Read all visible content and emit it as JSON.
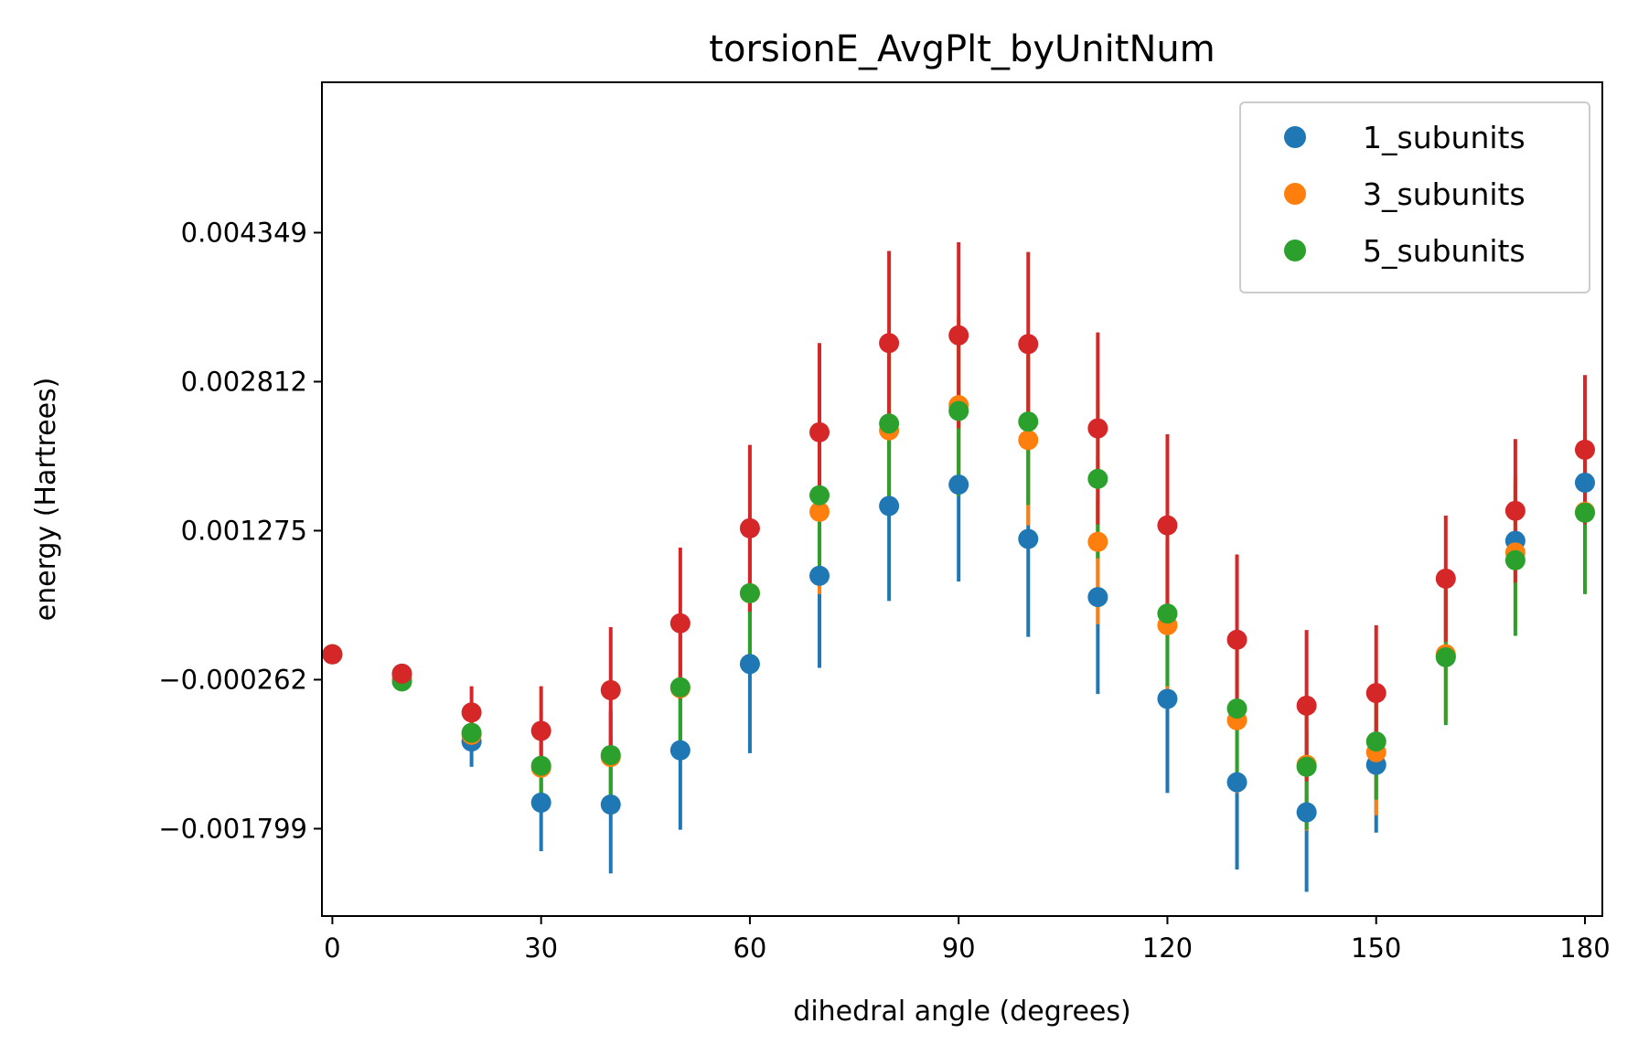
{
  "chart_data": {
    "type": "scatter",
    "title": "torsionE_AvgPlt_byUnitNum",
    "xlabel": "dihedral angle (degrees)",
    "ylabel": "energy (Hartrees)",
    "xlim": [
      -1.5,
      182.5
    ],
    "ylim": [
      -0.0027,
      0.0059
    ],
    "xticks": [
      0,
      30,
      60,
      90,
      120,
      150,
      180
    ],
    "xtick_labels": [
      "0",
      "30",
      "60",
      "90",
      "120",
      "150",
      "180"
    ],
    "yticks": [
      -0.001799,
      -0.000262,
      0.001275,
      0.002812,
      0.004349
    ],
    "ytick_labels": [
      "−0.001799",
      "−0.000262",
      "0.001275",
      "0.002812",
      "0.004349"
    ],
    "legend_position": "top-right",
    "grid": false,
    "x": [
      0,
      10,
      20,
      30,
      40,
      50,
      60,
      70,
      80,
      90,
      100,
      110,
      120,
      130,
      140,
      150,
      160,
      170,
      180
    ],
    "series": [
      {
        "name": "1_subunits",
        "color": "#1f77b4",
        "in_legend": true,
        "values": [
          0,
          -0.0002,
          -0.0009,
          -0.00153,
          -0.00155,
          -0.00099,
          -0.0001,
          0.00081,
          0.00153,
          0.00175,
          0.00119,
          0.00059,
          -0.00046,
          -0.00132,
          -0.00163,
          -0.00114,
          -2e-05,
          0.00117,
          0.00177
        ],
        "errors": [
          0,
          0,
          0.00026,
          0.0005,
          0.00071,
          0.00082,
          0.00092,
          0.00095,
          0.00098,
          0.001,
          0.00101,
          0.001,
          0.00097,
          0.0009,
          0.00082,
          0.0007,
          0,
          0,
          0
        ]
      },
      {
        "name": "3_subunits",
        "color": "#ff7f0e",
        "in_legend": true,
        "values": [
          0,
          -0.00025,
          -0.00083,
          -0.00117,
          -0.00106,
          -0.00035,
          0.00063,
          0.00147,
          0.00231,
          0.00257,
          0.00221,
          0.00116,
          0.0003,
          -0.00068,
          -0.00114,
          -0.00101,
          0,
          0.00105,
          0.00147
        ],
        "errors": [
          0,
          0,
          0.00015,
          0.00035,
          0.0005,
          0.00065,
          0.0008,
          0.00085,
          0.00088,
          0.0009,
          0.00088,
          0.00085,
          0.0008,
          0.00075,
          0.00068,
          0.00065,
          0.0007,
          0.00078,
          0.00083
        ]
      },
      {
        "name": "5_subunits",
        "color": "#2ca02c",
        "in_legend": true,
        "values": [
          0,
          -0.00028,
          -0.00081,
          -0.00115,
          -0.00104,
          -0.00034,
          0.00063,
          0.00164,
          0.00238,
          0.00251,
          0.0024,
          0.00181,
          0.00042,
          -0.00056,
          -0.00116,
          -0.0009,
          -3e-05,
          0.00097,
          0.00146
        ],
        "errors": [
          0,
          0,
          0.00012,
          0.0003,
          0.00045,
          0.0006,
          0.00075,
          0.00082,
          0.00085,
          0.00088,
          0.00086,
          0.00082,
          0.00075,
          0.0007,
          0.00065,
          0.0006,
          0.0007,
          0.00078,
          0.00084
        ]
      },
      {
        "name": "",
        "color": "#d62728",
        "in_legend": false,
        "values": [
          0,
          -0.0002,
          -0.0006,
          -0.00079,
          -0.00037,
          0.00032,
          0.0013,
          0.00229,
          0.00321,
          0.00329,
          0.0032,
          0.00233,
          0.00133,
          0.00015,
          -0.00053,
          -0.0004,
          0.00078,
          0.00148,
          0.00211
        ],
        "errors": [
          0,
          0,
          0.00027,
          0.00046,
          0.00065,
          0.00078,
          0.00086,
          0.00092,
          0.00095,
          0.00096,
          0.00095,
          0.00099,
          0.00094,
          0.00088,
          0.00078,
          0.0007,
          0.00065,
          0.00074,
          0.00077
        ]
      }
    ]
  }
}
